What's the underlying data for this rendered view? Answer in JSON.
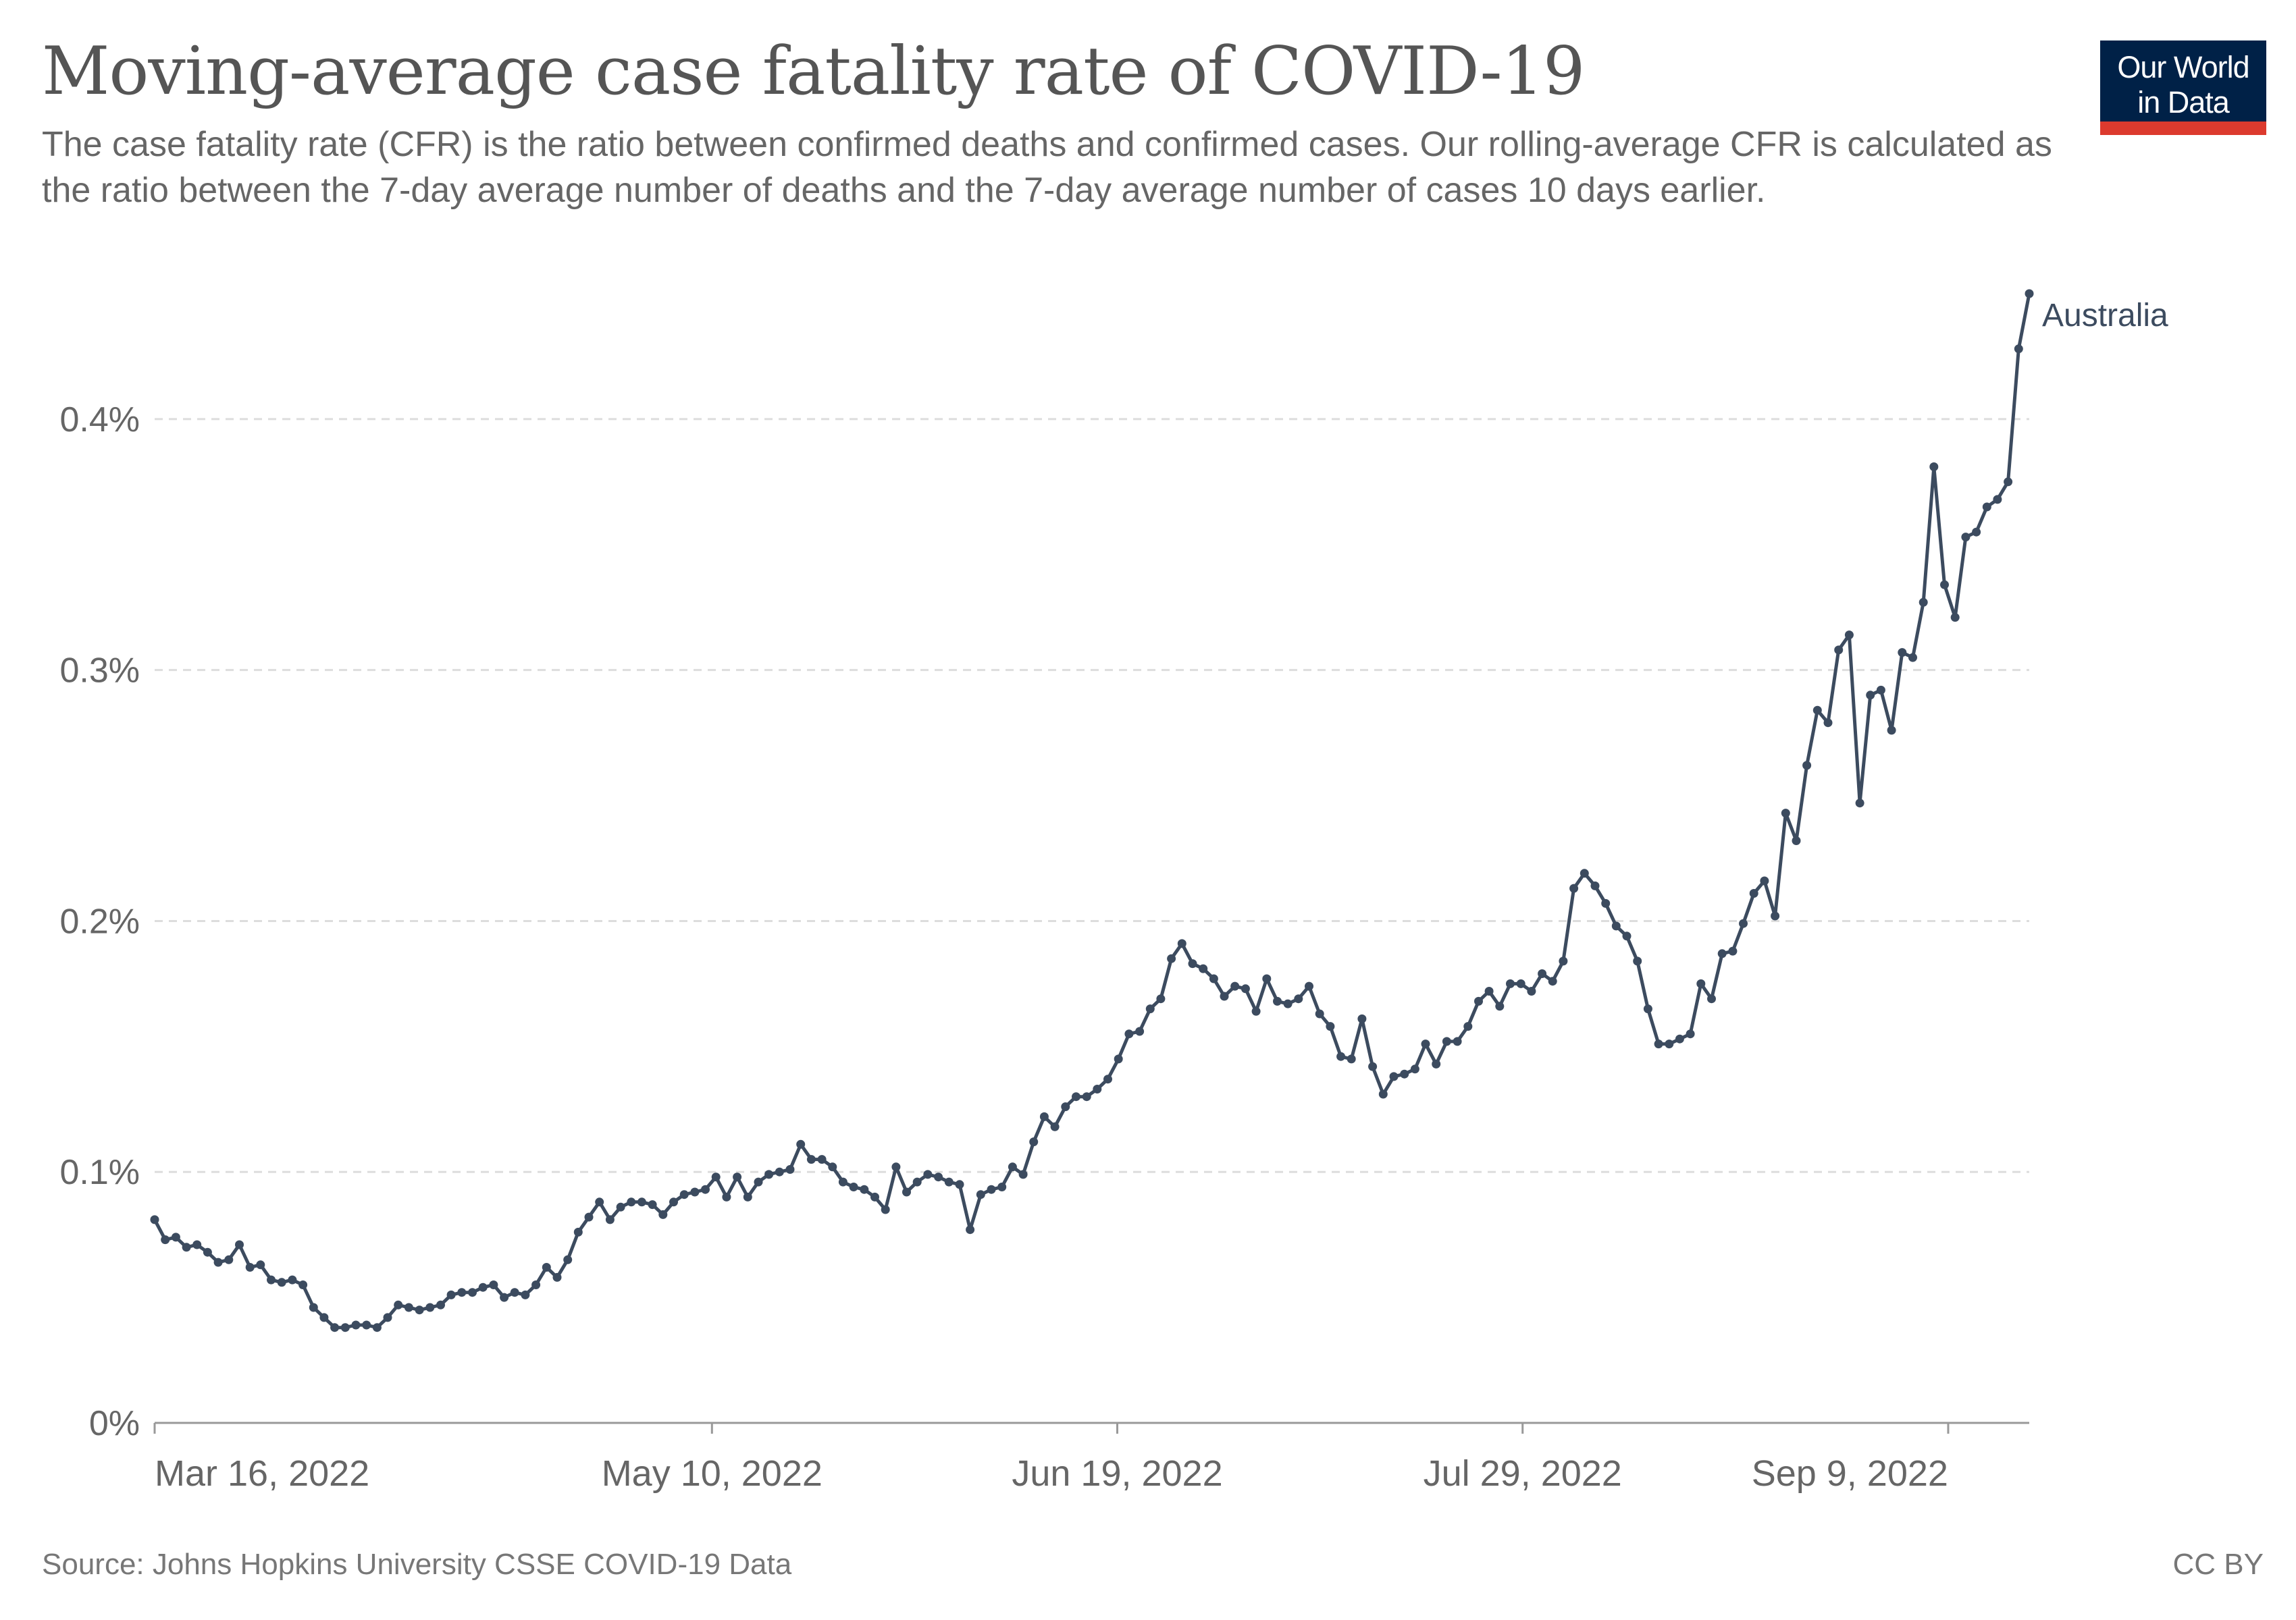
{
  "title": "Moving-average case fatality rate of COVID-19",
  "subtitle": "The case fatality rate (CFR) is the ratio between confirmed deaths and confirmed cases. Our rolling-average CFR is calculated as the ratio between the 7-day average number of deaths and the 7-day average number of cases 10 days earlier.",
  "logo": {
    "line1": "Our World",
    "line2": "in Data"
  },
  "footer": {
    "source": "Source: Johns Hopkins University CSSE COVID-19 Data",
    "license": "CC BY"
  },
  "colors": {
    "series": "#3c4b5f",
    "grid": "#dddddd",
    "axis": "#999999",
    "text": "#666666",
    "logo_bg": "#002147",
    "logo_accent": "#dc3a2e"
  },
  "chart_data": {
    "type": "line",
    "title": "Moving-average case fatality rate of COVID-19",
    "xlabel": "",
    "ylabel": "",
    "x_start": "2022-03-16",
    "x_end": "2022-09-17",
    "x_ticks": [
      {
        "date": "2022-03-16",
        "label": "Mar 16, 2022"
      },
      {
        "date": "2022-05-10",
        "label": "May 10, 2022"
      },
      {
        "date": "2022-06-19",
        "label": "Jun 19, 2022"
      },
      {
        "date": "2022-07-29",
        "label": "Jul 29, 2022"
      },
      {
        "date": "2022-09-09",
        "label": "Sep 9, 2022"
      }
    ],
    "ylim": [
      0,
      0.45
    ],
    "y_ticks": [
      {
        "value": 0,
        "label": "0%"
      },
      {
        "value": 0.1,
        "label": "0.1%"
      },
      {
        "value": 0.2,
        "label": "0.2%"
      },
      {
        "value": 0.3,
        "label": "0.3%"
      },
      {
        "value": 0.4,
        "label": "0.4%"
      }
    ],
    "grid": "horizontal dashed",
    "legend": "end-of-line label",
    "series": [
      {
        "name": "Australia",
        "color": "#3c4b5f",
        "values": [
          0.081,
          0.073,
          0.074,
          0.07,
          0.071,
          0.068,
          0.064,
          0.065,
          0.071,
          0.062,
          0.063,
          0.057,
          0.056,
          0.057,
          0.055,
          0.046,
          0.042,
          0.038,
          0.038,
          0.039,
          0.039,
          0.038,
          0.042,
          0.047,
          0.046,
          0.045,
          0.046,
          0.047,
          0.051,
          0.052,
          0.052,
          0.054,
          0.055,
          0.05,
          0.052,
          0.051,
          0.055,
          0.062,
          0.058,
          0.065,
          0.076,
          0.082,
          0.088,
          0.081,
          0.086,
          0.088,
          0.088,
          0.087,
          0.083,
          0.088,
          0.091,
          0.092,
          0.093,
          0.098,
          0.09,
          0.098,
          0.09,
          0.096,
          0.099,
          0.1,
          0.101,
          0.111,
          0.105,
          0.105,
          0.102,
          0.096,
          0.094,
          0.093,
          0.09,
          0.085,
          0.102,
          0.092,
          0.096,
          0.099,
          0.098,
          0.096,
          0.095,
          0.077,
          0.091,
          0.093,
          0.094,
          0.102,
          0.099,
          0.112,
          0.122,
          0.118,
          0.126,
          0.13,
          0.13,
          0.133,
          0.137,
          0.145,
          0.155,
          0.156,
          0.165,
          0.169,
          0.185,
          0.191,
          0.183,
          0.181,
          0.177,
          0.17,
          0.174,
          0.173,
          0.164,
          0.177,
          0.168,
          0.167,
          0.169,
          0.174,
          0.163,
          0.158,
          0.146,
          0.145,
          0.161,
          0.142,
          0.131,
          0.138,
          0.139,
          0.141,
          0.151,
          0.143,
          0.152,
          0.152,
          0.158,
          0.168,
          0.172,
          0.166,
          0.175,
          0.175,
          0.172,
          0.179,
          0.176,
          0.184,
          0.213,
          0.219,
          0.214,
          0.207,
          0.198,
          0.194,
          0.184,
          0.165,
          0.151,
          0.151,
          0.153,
          0.155,
          0.175,
          0.169,
          0.187,
          0.188,
          0.199,
          0.211,
          0.216,
          0.202,
          0.243,
          0.232,
          0.262,
          0.284,
          0.279,
          0.308,
          0.314,
          0.247,
          0.29,
          0.292,
          0.276,
          0.307,
          0.305,
          0.327,
          0.381,
          0.334,
          0.321,
          0.353,
          0.355,
          0.365,
          0.368,
          0.375,
          0.428,
          0.45
        ]
      }
    ]
  }
}
